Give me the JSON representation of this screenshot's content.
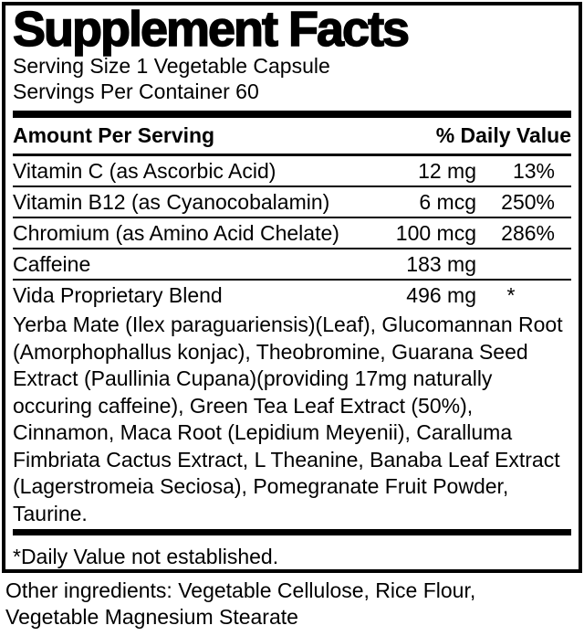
{
  "label": {
    "title": "Supplement Facts",
    "serving_size": "Serving Size 1 Vegetable Capsule",
    "servings_per_container": "Servings Per Container 60",
    "columns": {
      "amount_header": "Amount Per Serving",
      "dv_header": "% Daily Value"
    },
    "rows": [
      {
        "name": "Vitamin C (as Ascorbic Acid)",
        "amount": "12 mg",
        "dv": "13%"
      },
      {
        "name": "Vitamin B12 (as Cyanocobalamin)",
        "amount": "6 mcg",
        "dv": "250%"
      },
      {
        "name": "Chromium (as Amino Acid Chelate)",
        "amount": "100 mcg",
        "dv": "286%"
      },
      {
        "name": "Caffeine",
        "amount": "183 mg",
        "dv": ""
      },
      {
        "name": "Vida Proprietary Blend",
        "amount": "496 mg",
        "dv": "*"
      }
    ],
    "blend_description": "Yerba Mate (Ilex paraguariensis)(Leaf), Glucomannan Root (Amorphophallus konjac), Theobromine, Guarana Seed Extract (Paullinia Cupana)(providing 17mg naturally occuring caffeine), Green Tea Leaf Extract (50%), Cinnamon, Maca Root (Lepidium Meyenii), Caralluma Fimbriata Cactus Extract, L Theanine, Banaba Leaf Extract (Lagerstromeia Seciosa), Pomegranate Fruit Powder, Taurine.",
    "footnote": "*Daily Value not established.",
    "other_ingredients": "Other ingredients: Vegetable Cellulose, Rice Flour, Vegetable Magnesium Stearate",
    "colors": {
      "text": "#000000",
      "background": "#ffffff",
      "rule": "#000000"
    }
  }
}
